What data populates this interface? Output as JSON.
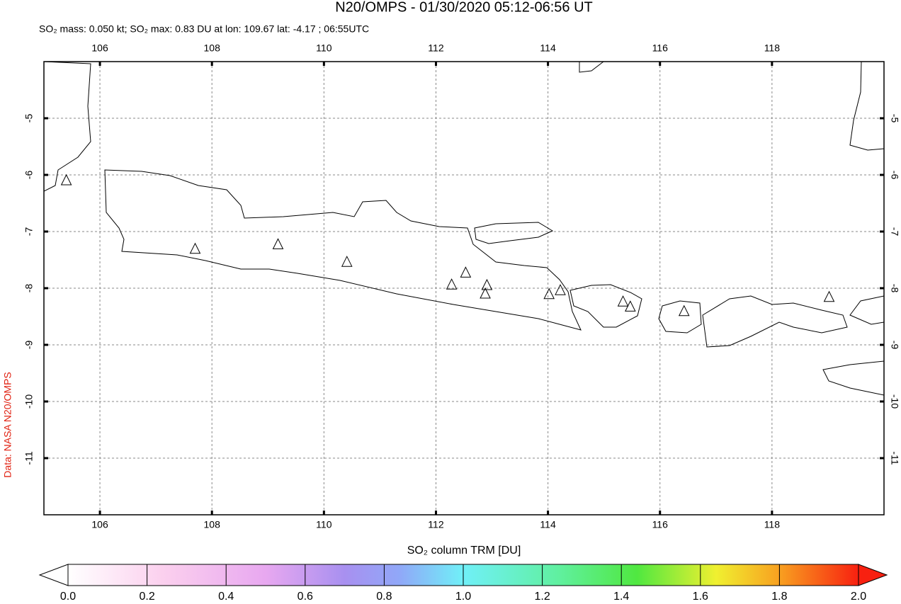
{
  "chart_data": {
    "type": "map",
    "title": "N20/OMPS - 01/30/2020 05:12-06:56 UT",
    "subtitle": "SO₂ mass: 0.050 kt; SO₂ max: 0.83 DU at lon: 109.67 lat: -4.17 ; 06:55UTC",
    "colorbar_label": "SO₂ column TRM [DU]",
    "source_label": "Data: NASA N20/OMPS",
    "xlim": [
      105,
      120
    ],
    "ylim": [
      -12,
      -4
    ],
    "xticks": [
      106,
      108,
      110,
      112,
      114,
      116,
      118
    ],
    "yticks": [
      -5,
      -6,
      -7,
      -8,
      -9,
      -10,
      -11
    ],
    "grid": true,
    "colorbar_lim": [
      0,
      2
    ],
    "colorbar_ticks": [
      {
        "value": 0,
        "label": "0.0"
      },
      0.2,
      0.4,
      0.6,
      0.8,
      {
        "value": 1,
        "label": "1.0"
      },
      1.2,
      1.4,
      1.6,
      1.8,
      {
        "value": 2,
        "label": "2.0"
      }
    ],
    "volcanoes": {
      "lon": [
        105.4,
        107.7,
        109.18,
        110.41,
        112.28,
        112.53,
        112.91,
        112.88,
        114.02,
        114.22,
        115.34,
        115.47,
        116.43,
        119.02
      ],
      "lat": [
        -6.1,
        -7.31,
        -7.23,
        -7.54,
        -7.94,
        -7.73,
        -7.95,
        -8.1,
        -8.11,
        -8.04,
        -8.24,
        -8.33,
        -8.41,
        -8.16
      ]
    }
  }
}
